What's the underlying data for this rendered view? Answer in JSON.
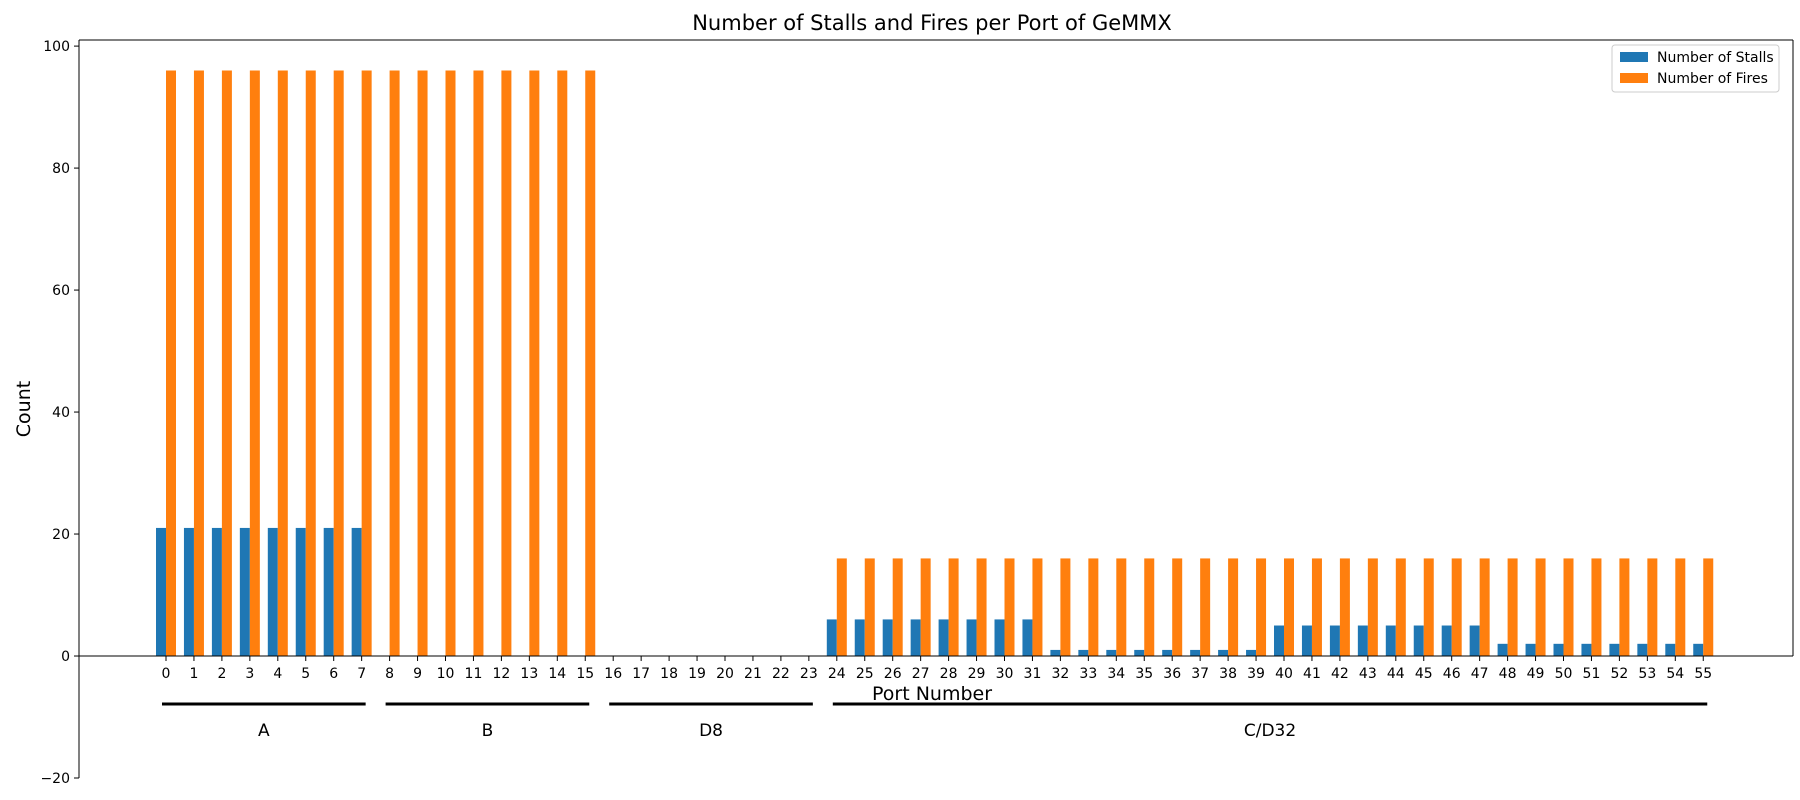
{
  "chart_data": {
    "type": "bar",
    "title": "Number of Stalls and Fires per Port of GeMMX",
    "xlabel": "Port Number",
    "ylabel": "Count",
    "ylim": [
      -20,
      101
    ],
    "yticks": [
      -20,
      0,
      20,
      40,
      60,
      80,
      100
    ],
    "ytick_labels": [
      "−20",
      "0",
      "20",
      "40",
      "60",
      "80",
      "100"
    ],
    "legend_position": "top-right",
    "categories": [
      "0",
      "1",
      "2",
      "3",
      "4",
      "5",
      "6",
      "7",
      "8",
      "9",
      "10",
      "11",
      "12",
      "13",
      "14",
      "15",
      "16",
      "17",
      "18",
      "19",
      "20",
      "21",
      "22",
      "23",
      "24",
      "25",
      "26",
      "27",
      "28",
      "29",
      "30",
      "31",
      "32",
      "33",
      "34",
      "35",
      "36",
      "37",
      "38",
      "39",
      "40",
      "41",
      "42",
      "43",
      "44",
      "45",
      "46",
      "47",
      "48",
      "49",
      "50",
      "51",
      "52",
      "53",
      "54",
      "55"
    ],
    "series": [
      {
        "name": "Number of Stalls",
        "color": "#1f77b4",
        "values": [
          21,
          21,
          21,
          21,
          21,
          21,
          21,
          21,
          0,
          0,
          0,
          0,
          0,
          0,
          0,
          0,
          0,
          0,
          0,
          0,
          0,
          0,
          0,
          0,
          6,
          6,
          6,
          6,
          6,
          6,
          6,
          6,
          1,
          1,
          1,
          1,
          1,
          1,
          1,
          1,
          5,
          5,
          5,
          5,
          5,
          5,
          5,
          5,
          2,
          2,
          2,
          2,
          2,
          2,
          2,
          2
        ]
      },
      {
        "name": "Number of Fires",
        "color": "#ff7f0e",
        "values": [
          96,
          96,
          96,
          96,
          96,
          96,
          96,
          96,
          96,
          96,
          96,
          96,
          96,
          96,
          96,
          96,
          0,
          0,
          0,
          0,
          0,
          0,
          0,
          0,
          16,
          16,
          16,
          16,
          16,
          16,
          16,
          16,
          16,
          16,
          16,
          16,
          16,
          16,
          16,
          16,
          16,
          16,
          16,
          16,
          16,
          16,
          16,
          16,
          16,
          16,
          16,
          16,
          16,
          16,
          16,
          16
        ]
      }
    ],
    "groups": [
      {
        "label": "A",
        "start": 0,
        "end": 7
      },
      {
        "label": "B",
        "start": 8,
        "end": 15
      },
      {
        "label": "D8",
        "start": 16,
        "end": 23
      },
      {
        "label": "C/D32",
        "start": 24,
        "end": 55
      }
    ]
  }
}
